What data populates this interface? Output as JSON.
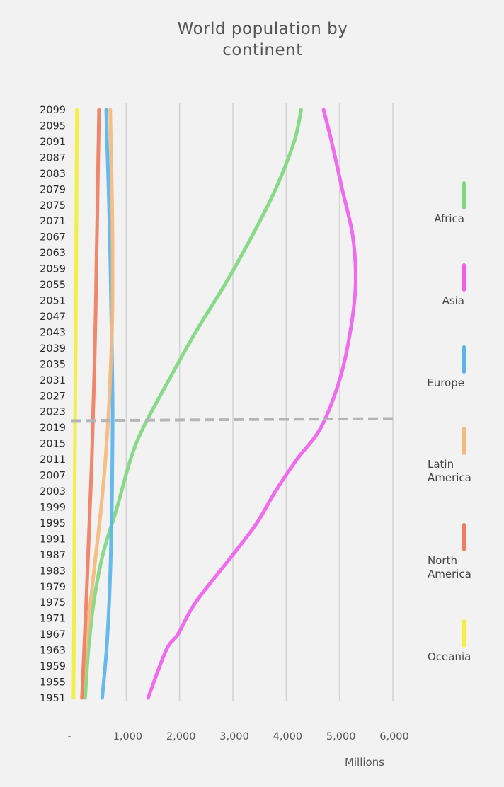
{
  "title": "World population by continent",
  "unit_label": "Millions",
  "chart_data": {
    "type": "line",
    "title": "World population by continent",
    "xlabel": "Millions",
    "ylabel": "",
    "orientation": "horizontal-values",
    "xlim": [
      0,
      6000
    ],
    "x_ticks": [
      "-",
      "1,000",
      "2,000",
      "3,000",
      "4,000",
      "5,000",
      "6,000"
    ],
    "x_tick_values": [
      0,
      1000,
      2000,
      3000,
      4000,
      5000,
      6000
    ],
    "grid": "vertical",
    "legend_position": "right",
    "marker_year": 2021,
    "years": [
      1951,
      1955,
      1959,
      1963,
      1967,
      1971,
      1975,
      1979,
      1983,
      1987,
      1991,
      1995,
      1999,
      2003,
      2007,
      2011,
      2015,
      2019,
      2023,
      2027,
      2031,
      2035,
      2039,
      2043,
      2047,
      2051,
      2055,
      2059,
      2063,
      2067,
      2071,
      2075,
      2079,
      2083,
      2087,
      2091,
      2095,
      2099
    ],
    "series": [
      {
        "name": "Africa",
        "color": "#7fd87f",
        "points": [
          [
            1951,
            230
          ],
          [
            1963,
            290
          ],
          [
            1975,
            390
          ],
          [
            1987,
            560
          ],
          [
            1999,
            830
          ],
          [
            2011,
            1080
          ],
          [
            2019,
            1320
          ],
          [
            2031,
            1800
          ],
          [
            2043,
            2300
          ],
          [
            2055,
            2850
          ],
          [
            2067,
            3350
          ],
          [
            2079,
            3800
          ],
          [
            2091,
            4150
          ],
          [
            2099,
            4280
          ]
        ]
      },
      {
        "name": "Asia",
        "color": "#f060f0",
        "points": [
          [
            1951,
            1410
          ],
          [
            1963,
            1750
          ],
          [
            1967,
            1970
          ],
          [
            1975,
            2300
          ],
          [
            1987,
            3000
          ],
          [
            1995,
            3450
          ],
          [
            2003,
            3800
          ],
          [
            2011,
            4200
          ],
          [
            2019,
            4650
          ],
          [
            2031,
            5000
          ],
          [
            2043,
            5200
          ],
          [
            2055,
            5300
          ],
          [
            2067,
            5250
          ],
          [
            2079,
            5050
          ],
          [
            2091,
            4850
          ],
          [
            2099,
            4700
          ]
        ]
      },
      {
        "name": "Europe",
        "color": "#5ab4ec",
        "points": [
          [
            1951,
            550
          ],
          [
            1963,
            630
          ],
          [
            1975,
            680
          ],
          [
            1987,
            710
          ],
          [
            1999,
            730
          ],
          [
            2011,
            740
          ],
          [
            2023,
            745
          ],
          [
            2035,
            735
          ],
          [
            2047,
            720
          ],
          [
            2059,
            705
          ],
          [
            2071,
            685
          ],
          [
            2083,
            660
          ],
          [
            2091,
            640
          ],
          [
            2099,
            625
          ]
        ]
      },
      {
        "name": "Latin America",
        "color": "#f6b97c",
        "points": [
          [
            1951,
            170
          ],
          [
            1963,
            240
          ],
          [
            1975,
            330
          ],
          [
            1987,
            430
          ],
          [
            1999,
            530
          ],
          [
            2011,
            610
          ],
          [
            2023,
            670
          ],
          [
            2035,
            710
          ],
          [
            2047,
            740
          ],
          [
            2059,
            745
          ],
          [
            2071,
            740
          ],
          [
            2083,
            725
          ],
          [
            2091,
            712
          ],
          [
            2099,
            700
          ]
        ]
      },
      {
        "name": "North America",
        "color": "#f07d5f",
        "points": [
          [
            1951,
            170
          ],
          [
            1963,
            210
          ],
          [
            1975,
            250
          ],
          [
            1987,
            285
          ],
          [
            1999,
            320
          ],
          [
            2011,
            355
          ],
          [
            2023,
            380
          ],
          [
            2035,
            405
          ],
          [
            2047,
            425
          ],
          [
            2059,
            440
          ],
          [
            2071,
            455
          ],
          [
            2083,
            470
          ],
          [
            2091,
            480
          ],
          [
            2099,
            490
          ]
        ]
      },
      {
        "name": "Oceania",
        "color": "#f3ef3a",
        "points": [
          [
            1951,
            12
          ],
          [
            1975,
            22
          ],
          [
            1999,
            31
          ],
          [
            2023,
            43
          ],
          [
            2047,
            56
          ],
          [
            2071,
            65
          ],
          [
            2099,
            75
          ]
        ]
      }
    ]
  }
}
